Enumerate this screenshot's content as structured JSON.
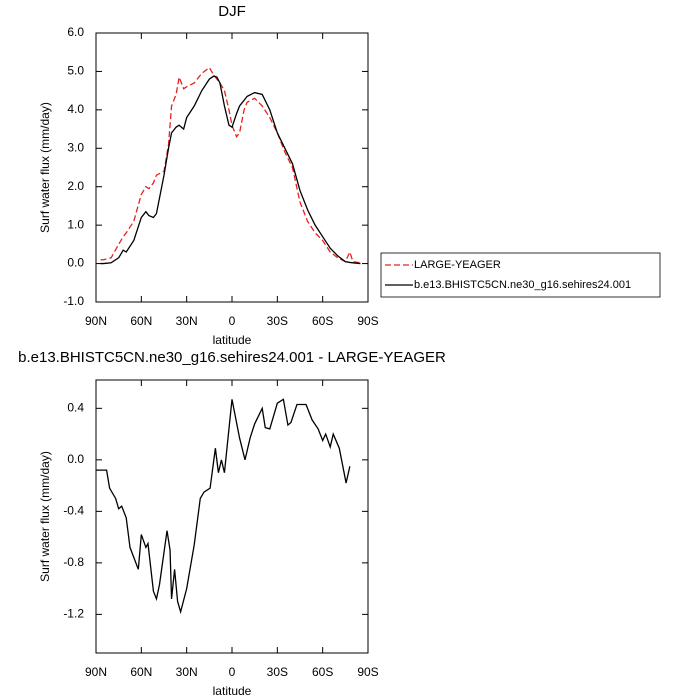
{
  "chart_data": [
    {
      "type": "line",
      "title": "DJF",
      "y_label": "Surf water flux (mm/day)",
      "x_label": "latitude",
      "xlim": [
        90,
        -90
      ],
      "xticks": [
        {
          "value": 90,
          "label": "90N"
        },
        {
          "value": 60,
          "label": "60N"
        },
        {
          "value": 30,
          "label": "30N"
        },
        0,
        {
          "value": -30,
          "label": "30S"
        },
        {
          "value": -60,
          "label": "60S"
        },
        {
          "value": -90,
          "label": "90S"
        }
      ],
      "ylim": [
        -1,
        6
      ],
      "yticks": [
        {
          "value": -1,
          "label": "-1.0"
        },
        {
          "value": 0,
          "label": "0.0"
        },
        {
          "value": 1,
          "label": "1.0"
        },
        {
          "value": 2,
          "label": "2.0"
        },
        {
          "value": 3,
          "label": "3.0"
        },
        {
          "value": 4,
          "label": "4.0"
        },
        {
          "value": 5,
          "label": "5.0"
        },
        {
          "value": 6,
          "label": "6.0"
        }
      ],
      "legend": "outside-right",
      "x": [
        87,
        85,
        80,
        75,
        72,
        70,
        65,
        60,
        57,
        55,
        52,
        50,
        45,
        42,
        40,
        37,
        35,
        32,
        30,
        25,
        20,
        15,
        12,
        10,
        8,
        5,
        2,
        0,
        -3,
        -5,
        -8,
        -10,
        -15,
        -20,
        -25,
        -30,
        -35,
        -40,
        -45,
        -50,
        -55,
        -60,
        -65,
        -70,
        -75,
        -78,
        -80,
        -85
      ],
      "series": [
        {
          "name": "LARGE-YEAGER",
          "color": "#e8211f",
          "dashed": true,
          "values": [
            0.1,
            0.1,
            0.15,
            0.5,
            0.7,
            0.8,
            1.1,
            1.8,
            2.0,
            1.95,
            2.1,
            2.3,
            2.4,
            3.1,
            4.1,
            4.4,
            4.85,
            4.55,
            4.6,
            4.7,
            4.95,
            5.1,
            4.9,
            4.8,
            4.7,
            4.5,
            4.0,
            3.6,
            3.3,
            3.4,
            4.0,
            4.2,
            4.3,
            4.1,
            3.8,
            3.4,
            2.9,
            2.5,
            1.6,
            1.1,
            0.8,
            0.6,
            0.3,
            0.15,
            0.05,
            0.3,
            0.05,
            0.02
          ]
        },
        {
          "name": "b.e13.BHISTC5CN.ne30_g16.sehires24.001",
          "color": "#000000",
          "dashed": false,
          "values": [
            0.0,
            0.0,
            0.02,
            0.15,
            0.35,
            0.3,
            0.6,
            1.2,
            1.35,
            1.25,
            1.2,
            1.3,
            2.3,
            3.0,
            3.4,
            3.55,
            3.6,
            3.5,
            3.8,
            4.1,
            4.5,
            4.8,
            4.88,
            4.85,
            4.7,
            4.1,
            3.6,
            3.55,
            3.9,
            4.1,
            4.25,
            4.35,
            4.45,
            4.4,
            4.0,
            3.4,
            3.0,
            2.6,
            1.9,
            1.4,
            1.0,
            0.7,
            0.4,
            0.2,
            0.05,
            0.03,
            0.02,
            0.0
          ]
        }
      ]
    },
    {
      "type": "line",
      "title": "b.e13.BHISTC5CN.ne30_g16.sehires24.001 - LARGE-YEAGER",
      "y_label": "Surf water flux (mm/day)",
      "x_label": "latitude",
      "xlim": [
        90,
        -90
      ],
      "xticks": [
        {
          "value": 90,
          "label": "90N"
        },
        {
          "value": 60,
          "label": "60N"
        },
        {
          "value": 30,
          "label": "30N"
        },
        0,
        {
          "value": -30,
          "label": "30S"
        },
        {
          "value": -60,
          "label": "60S"
        },
        {
          "value": -90,
          "label": "90S"
        }
      ],
      "ylim": [
        -1.5,
        0.62
      ],
      "yticks": [
        -1.2,
        -0.8,
        -0.4,
        {
          "value": 0,
          "label": "0.0"
        },
        0.4
      ],
      "x": [
        90,
        83,
        81,
        77,
        75,
        73,
        70,
        67.5,
        62,
        60,
        57,
        55.6,
        52,
        50,
        48,
        43,
        41,
        40,
        38,
        36,
        34,
        30,
        25,
        21,
        18.5,
        14.5,
        11,
        9,
        7,
        5,
        0,
        -5,
        -8.6,
        -12,
        -15,
        -20,
        -22,
        -25,
        -30,
        -34,
        -37,
        -39,
        -43,
        -49,
        -53,
        -57,
        -60,
        -62,
        -65,
        -67,
        -71,
        -75.5,
        -78
      ],
      "series": [
        {
          "color": "#000000",
          "dashed": false,
          "values": [
            -0.08,
            -0.08,
            -0.22,
            -0.3,
            -0.38,
            -0.36,
            -0.45,
            -0.68,
            -0.85,
            -0.58,
            -0.68,
            -0.65,
            -1.02,
            -1.08,
            -0.97,
            -0.55,
            -0.7,
            -1.08,
            -0.85,
            -1.1,
            -1.18,
            -1.0,
            -0.66,
            -0.3,
            -0.25,
            -0.22,
            0.09,
            -0.1,
            0.0,
            -0.1,
            0.47,
            0.17,
            0.0,
            0.17,
            0.28,
            0.4,
            0.25,
            0.24,
            0.44,
            0.47,
            0.27,
            0.29,
            0.43,
            0.43,
            0.31,
            0.24,
            0.15,
            0.2,
            0.1,
            0.2,
            0.09,
            -0.18,
            -0.05
          ]
        }
      ]
    }
  ]
}
